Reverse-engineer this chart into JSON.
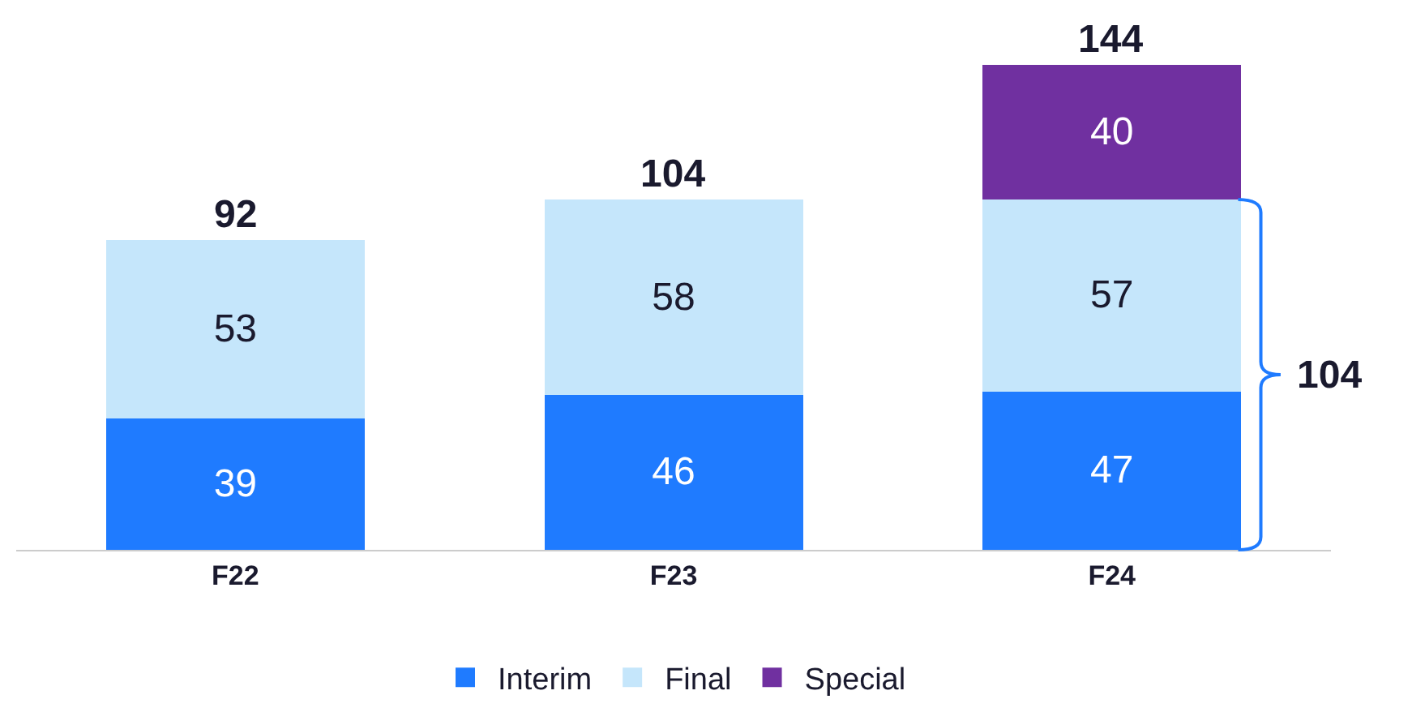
{
  "chart_data": {
    "type": "bar",
    "stacked": true,
    "categories": [
      "F22",
      "F23",
      "F24"
    ],
    "series": [
      {
        "name": "Interim",
        "color": "#1f7bff",
        "values": [
          39,
          46,
          47
        ]
      },
      {
        "name": "Final",
        "color": "#c5e6fb",
        "values": [
          53,
          58,
          57
        ]
      },
      {
        "name": "Special",
        "color": "#7030a0",
        "values": [
          null,
          null,
          40
        ]
      }
    ],
    "data_labels": true,
    "totals": [
      "92",
      "104",
      "144"
    ],
    "annotations": [
      "104"
    ],
    "legend": "bottom",
    "grid": false
  }
}
